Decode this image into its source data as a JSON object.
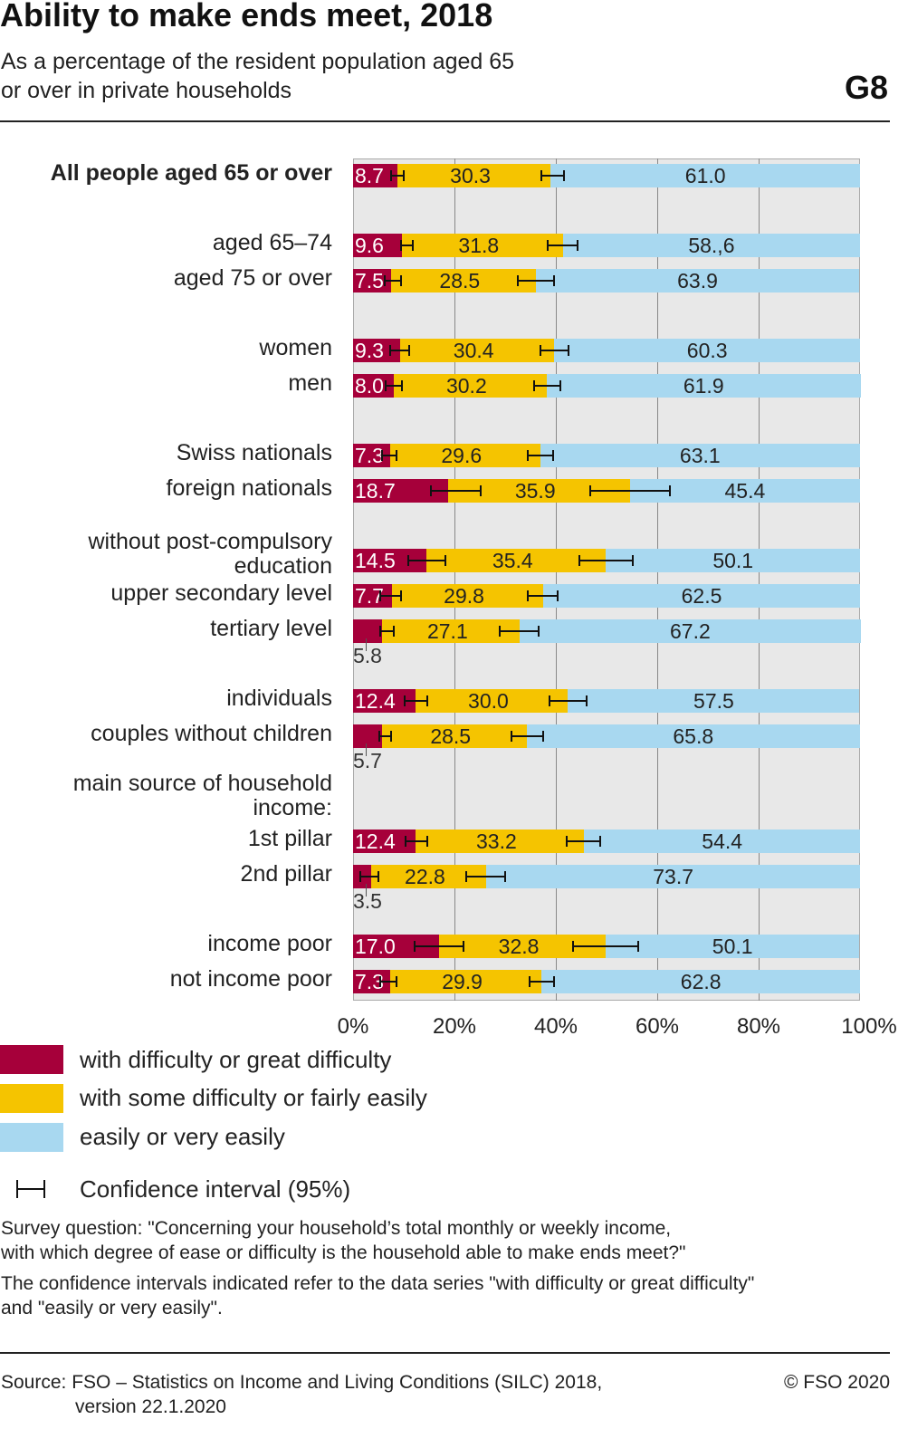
{
  "header": {
    "title": "Ability to make ends meet, 2018",
    "subtitle_line1": "As a percentage of the resident population aged 65",
    "subtitle_line2": "or over in private households",
    "graphic_id": "G8"
  },
  "colors": {
    "difficulty": "#a6003a",
    "some": "#f5c400",
    "easy": "#a8d8f0",
    "plot_bg": "#e8e8e8"
  },
  "chart_data": {
    "type": "bar",
    "stacked": true,
    "orientation": "horizontal",
    "title": "Ability to make ends meet, 2018",
    "xlim": [
      0,
      100
    ],
    "xticks": [
      "0%",
      "20%",
      "40%",
      "60%",
      "80%",
      "100%"
    ],
    "grid": true,
    "series": [
      "with difficulty or great difficulty",
      "with some difficulty or fairly easily",
      "easily or very easily"
    ],
    "group_headers": [
      {
        "lines": [
          "without post-compulsory",
          "education"
        ],
        "has_bar": true
      },
      {
        "lines": [
          "main source of household",
          "income:"
        ],
        "has_bar": false
      }
    ],
    "rows": [
      {
        "label": "All people aged 65 or over",
        "bold": true,
        "values": [
          8.7,
          30.3,
          61.0
        ],
        "labels": [
          "8.7",
          "30.3",
          "61.0"
        ],
        "ci_diff": [
          7.5,
          10.0
        ],
        "ci_easy": [
          37.1,
          41.6
        ]
      },
      {
        "label": "aged 65–74",
        "values": [
          9.6,
          31.8,
          58.6
        ],
        "labels": [
          "9.6",
          "31.8",
          "58.,6"
        ],
        "ci_diff": [
          9.5,
          11.8
        ],
        "ci_easy": [
          38.4,
          44.3
        ]
      },
      {
        "label": "aged 75 or over",
        "values": [
          7.5,
          28.5,
          63.9
        ],
        "labels": [
          "7.5",
          "28.5",
          "63.9"
        ],
        "ci_diff": [
          6.3,
          9.5
        ],
        "ci_easy": [
          32.5,
          39.6
        ]
      },
      {
        "label": "women",
        "values": [
          9.3,
          30.4,
          60.3
        ],
        "labels": [
          "9.3",
          "30.4",
          "60.3"
        ],
        "ci_diff": [
          7.3,
          11.1
        ],
        "ci_easy": [
          37.0,
          42.5
        ]
      },
      {
        "label": "men",
        "values": [
          8.0,
          30.2,
          61.9
        ],
        "labels": [
          "8.0",
          "30.2",
          "61.9"
        ],
        "ci_diff": [
          6.4,
          9.6
        ],
        "ci_easy": [
          35.7,
          40.9
        ]
      },
      {
        "label": "Swiss nationals",
        "values": [
          7.3,
          29.6,
          63.1
        ],
        "labels": [
          "7.3",
          "29.6",
          "63.1"
        ],
        "ci_diff": [
          5.7,
          8.6
        ],
        "ci_easy": [
          34.5,
          39.5
        ]
      },
      {
        "label": "foreign nationals",
        "values": [
          18.7,
          35.9,
          45.4
        ],
        "labels": [
          "18.7",
          "35.9",
          "45.4"
        ],
        "ci_diff": [
          15.4,
          25.2
        ],
        "ci_easy": [
          46.8,
          62.5
        ]
      },
      {
        "label": "",
        "values": [
          14.5,
          35.4,
          50.1
        ],
        "labels": [
          "14.5",
          "35.4",
          "50.1"
        ],
        "ci_diff": [
          10.9,
          18.2
        ],
        "ci_easy": [
          44.6,
          55.2
        ]
      },
      {
        "label": "upper secondary level",
        "values": [
          7.7,
          29.8,
          62.5
        ],
        "labels": [
          "7.7",
          "29.8",
          "62.5"
        ],
        "ci_diff": [
          5.4,
          9.5
        ],
        "ci_easy": [
          34.5,
          40.4
        ]
      },
      {
        "label": "tertiary level",
        "values": [
          5.8,
          27.1,
          67.2
        ],
        "labels": [
          "5.8",
          "27.1",
          "67.2"
        ],
        "below": true,
        "ci_diff": [
          5.4,
          8.0
        ],
        "ci_easy": [
          28.9,
          36.6
        ]
      },
      {
        "label": "individuals",
        "values": [
          12.4,
          30.0,
          57.5
        ],
        "labels": [
          "12.4",
          "30.0",
          "57.5"
        ],
        "ci_diff": [
          10.2,
          14.6
        ],
        "ci_easy": [
          38.8,
          46.1
        ]
      },
      {
        "label": "couples without children",
        "values": [
          5.7,
          28.5,
          65.8
        ],
        "labels": [
          "5.7",
          "28.5",
          "65.8"
        ],
        "below": true,
        "ci_diff": [
          5.2,
          7.5
        ],
        "ci_easy": [
          31.2,
          37.5
        ]
      },
      {
        "label": "1st pillar",
        "values": [
          12.4,
          33.2,
          54.4
        ],
        "labels": [
          "12.4",
          "33.2",
          "54.4"
        ],
        "ci_diff": [
          10.4,
          14.6
        ],
        "ci_easy": [
          42.1,
          48.8
        ]
      },
      {
        "label": "2nd pillar",
        "values": [
          3.5,
          22.8,
          73.7
        ],
        "labels": [
          "3.5",
          "22.8",
          "73.7"
        ],
        "below": true,
        "ci_diff": [
          1.4,
          5.0
        ],
        "ci_easy": [
          22.3,
          30.0
        ]
      },
      {
        "label": "income poor",
        "values": [
          17.0,
          32.8,
          50.1
        ],
        "labels": [
          "17.0",
          "32.8",
          "50.1"
        ],
        "ci_diff": [
          12.1,
          21.8
        ],
        "ci_easy": [
          43.4,
          56.3
        ]
      },
      {
        "label": "not income poor",
        "values": [
          7.3,
          29.9,
          62.8
        ],
        "labels": [
          "7.3",
          "29.9",
          "62.8"
        ],
        "ci_diff": [
          5.4,
          8.6
        ],
        "ci_easy": [
          34.8,
          39.6
        ]
      }
    ]
  },
  "legend": {
    "difficulty": "with difficulty or great difficulty",
    "some": "with some difficulty or fairly easily",
    "easy": "easily or very easily",
    "ci": "Confidence interval (95%)"
  },
  "notes": {
    "q1": "Survey question: \"Concerning your household’s total monthly or weekly income,",
    "q2": "with which degree of ease or difficulty is the household able to make ends meet?\"",
    "c1": "The confidence intervals indicated refer to the data series \"with difficulty or great difficulty\"",
    "c2": "and \"easily or very easily\"."
  },
  "footer": {
    "source1": "Source: FSO – Statistics on Income and Living Conditions (SILC) 2018,",
    "source2": "version 22.1.2020",
    "copyright": "© FSO 2020"
  }
}
